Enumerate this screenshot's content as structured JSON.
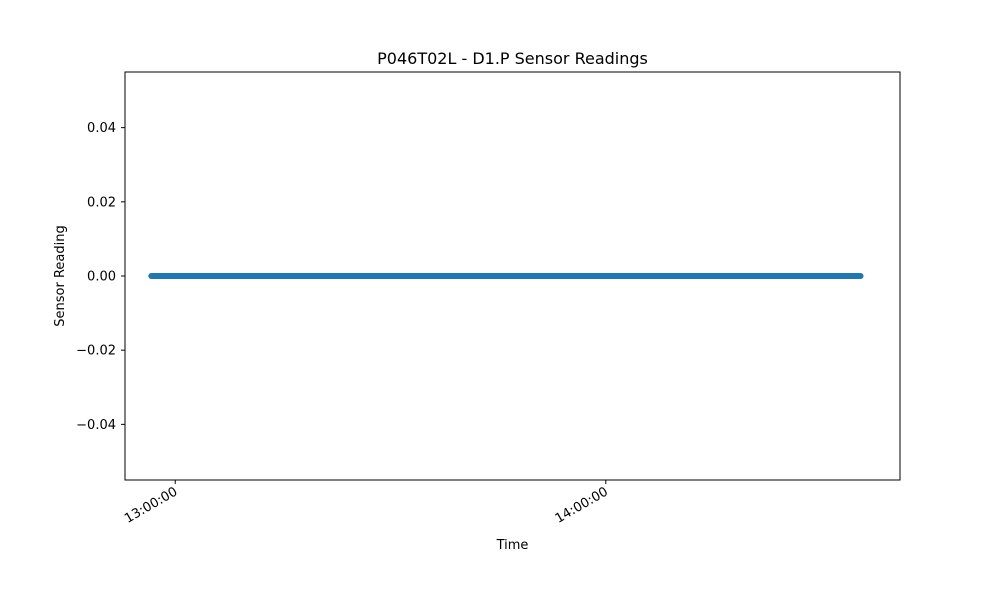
{
  "chart_data": {
    "type": "scatter",
    "title": "P046T02L - D1.P Sensor Readings",
    "xlabel": "Time",
    "ylabel": "Sensor Reading",
    "grid": false,
    "x_start": "12:56:40",
    "x_end": "14:35:30",
    "xlim": [
      "12:53:00",
      "14:41:00"
    ],
    "ylim": [
      -0.055,
      0.055
    ],
    "x_ticks": [
      "13:00:00",
      "14:00:00"
    ],
    "y_ticks": [
      -0.04,
      -0.02,
      0.0,
      0.02,
      0.04
    ],
    "y_tick_labels": [
      "−0.04",
      "−0.02",
      "0.00",
      "0.02",
      "0.04"
    ],
    "series": [
      {
        "name": "",
        "color": "#1f77b4",
        "constant_value": 0.0
      }
    ]
  }
}
